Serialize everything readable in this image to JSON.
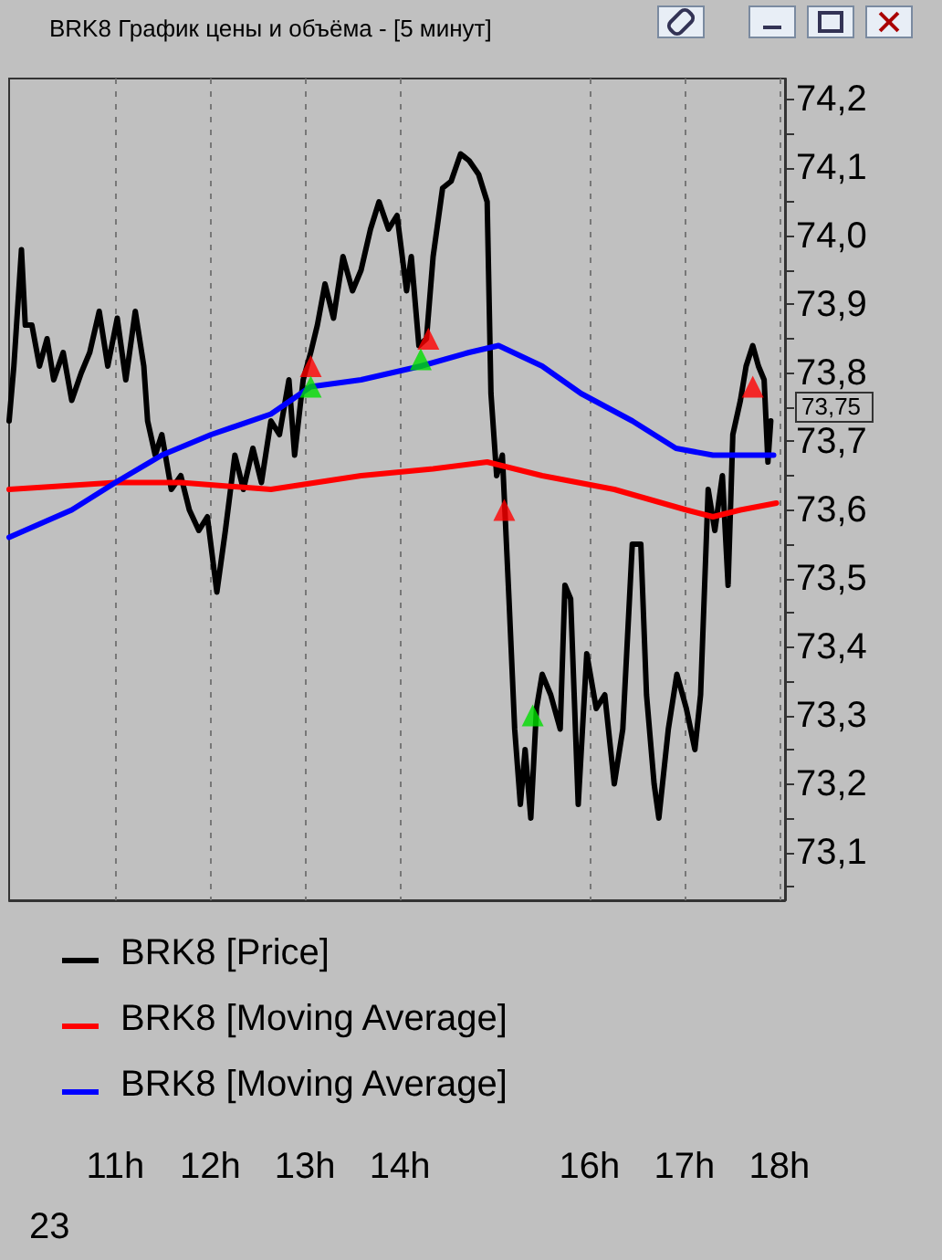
{
  "chart_data": {
    "type": "line",
    "title": "BRK8 График цены и объёма - [5 минут]",
    "xlim": [
      9.88,
      18.06
    ],
    "ylim": [
      73.03,
      74.23
    ],
    "xticks": [
      {
        "value": 11,
        "label": "11h"
      },
      {
        "value": 12,
        "label": "12h"
      },
      {
        "value": 13,
        "label": "13h"
      },
      {
        "value": 14,
        "label": "14h"
      },
      {
        "value": 16,
        "label": "16h"
      },
      {
        "value": 17,
        "label": "17h"
      },
      {
        "value": 18,
        "label": "18h"
      }
    ],
    "yticks": [
      {
        "value": 73.05,
        "label": null
      },
      {
        "value": 73.1,
        "label": "73,1"
      },
      {
        "value": 73.15,
        "label": null
      },
      {
        "value": 73.2,
        "label": "73,2"
      },
      {
        "value": 73.25,
        "label": null
      },
      {
        "value": 73.3,
        "label": "73,3"
      },
      {
        "value": 73.35,
        "label": null
      },
      {
        "value": 73.4,
        "label": "73,4"
      },
      {
        "value": 73.45,
        "label": null
      },
      {
        "value": 73.5,
        "label": "73,5"
      },
      {
        "value": 73.55,
        "label": null
      },
      {
        "value": 73.6,
        "label": "73,6"
      },
      {
        "value": 73.65,
        "label": null
      },
      {
        "value": 73.7,
        "label": "73,7"
      },
      {
        "value": 73.75,
        "label": null
      },
      {
        "value": 73.8,
        "label": "73,8"
      },
      {
        "value": 73.85,
        "label": null
      },
      {
        "value": 73.9,
        "label": "73,9"
      },
      {
        "value": 73.95,
        "label": null
      },
      {
        "value": 74.0,
        "label": "74,0"
      },
      {
        "value": 74.05,
        "label": null
      },
      {
        "value": 74.1,
        "label": "74,1"
      },
      {
        "value": 74.15,
        "label": null
      },
      {
        "value": 74.2,
        "label": "74,2"
      }
    ],
    "grid": "x",
    "legend": "bottom left",
    "marker": "none",
    "line_style": "solid",
    "annotations": [
      "73,75",
      "23"
    ],
    "series": [
      {
        "name": "BRK8 [Price]",
        "color": "#000000",
        "x": [
          9.88,
          9.93,
          10.01,
          10.05,
          10.12,
          10.2,
          10.28,
          10.35,
          10.45,
          10.54,
          10.64,
          10.73,
          10.83,
          10.92,
          11.02,
          11.11,
          11.21,
          11.3,
          11.34,
          11.42,
          11.49,
          11.59,
          11.69,
          11.78,
          11.88,
          11.97,
          12.07,
          12.16,
          12.26,
          12.35,
          12.45,
          12.54,
          12.64,
          12.73,
          12.83,
          12.89,
          12.98,
          13.06,
          13.13,
          13.21,
          13.3,
          13.4,
          13.5,
          13.59,
          13.69,
          13.78,
          13.88,
          13.97,
          14.07,
          14.12,
          14.2,
          14.28,
          14.35,
          14.45,
          14.54,
          14.64,
          14.73,
          14.83,
          14.92,
          14.96,
          15.02,
          15.08,
          15.15,
          15.21,
          15.27,
          15.32,
          15.38,
          15.44,
          15.5,
          15.59,
          15.69,
          15.74,
          15.8,
          15.88,
          15.97,
          16.07,
          16.16,
          16.26,
          16.35,
          16.45,
          16.54,
          16.6,
          16.68,
          16.73,
          16.83,
          16.92,
          17.02,
          17.11,
          17.17,
          17.25,
          17.32,
          17.4,
          17.46,
          17.51,
          17.59,
          17.65,
          17.72,
          17.78,
          17.84,
          17.88,
          17.91
        ],
        "values": [
          73.73,
          73.81,
          73.98,
          73.87,
          73.87,
          73.81,
          73.85,
          73.79,
          73.83,
          73.76,
          73.8,
          73.83,
          73.89,
          73.81,
          73.88,
          73.79,
          73.89,
          73.81,
          73.73,
          73.68,
          73.71,
          73.63,
          73.65,
          73.6,
          73.57,
          73.59,
          73.48,
          73.57,
          73.68,
          73.63,
          73.69,
          73.64,
          73.73,
          73.71,
          73.79,
          73.68,
          73.79,
          73.83,
          73.87,
          73.93,
          73.88,
          73.97,
          73.92,
          73.95,
          74.01,
          74.05,
          74.01,
          74.03,
          73.92,
          73.97,
          73.84,
          73.85,
          73.97,
          74.07,
          74.08,
          74.12,
          74.11,
          74.09,
          74.05,
          73.77,
          73.65,
          73.68,
          73.47,
          73.28,
          73.17,
          73.25,
          73.15,
          73.31,
          73.36,
          73.33,
          73.28,
          73.49,
          73.47,
          73.17,
          73.39,
          73.31,
          73.33,
          73.2,
          73.28,
          73.55,
          73.55,
          73.33,
          73.2,
          73.15,
          73.28,
          73.36,
          73.31,
          73.25,
          73.33,
          73.63,
          73.57,
          73.65,
          73.49,
          73.71,
          73.76,
          73.81,
          73.84,
          73.81,
          73.79,
          73.67,
          73.73
        ]
      },
      {
        "name": "BRK8 [Moving Average]",
        "color": "#ff0000",
        "x": [
          9.88,
          11.0,
          11.69,
          12.64,
          13.59,
          14.35,
          14.92,
          15.5,
          16.26,
          17.02,
          17.3,
          17.59,
          17.97
        ],
        "values": [
          73.63,
          73.64,
          73.64,
          73.63,
          73.65,
          73.66,
          73.67,
          73.65,
          73.63,
          73.6,
          73.59,
          73.6,
          73.61
        ]
      },
      {
        "name": "BRK8 [Moving Average]",
        "color": "#0000ff",
        "x": [
          9.88,
          10.54,
          11.0,
          11.49,
          12.01,
          12.64,
          13.06,
          13.59,
          14.22,
          14.73,
          15.04,
          15.5,
          15.91,
          16.45,
          16.91,
          17.3,
          17.59,
          17.94
        ],
        "values": [
          73.56,
          73.6,
          73.64,
          73.68,
          73.71,
          73.74,
          73.78,
          73.79,
          73.81,
          73.83,
          73.84,
          73.81,
          73.77,
          73.73,
          73.69,
          73.68,
          73.68,
          73.68
        ]
      },
      {
        "type": "scatter",
        "marker": "triangle",
        "color": "#ff0000",
        "x": [
          13.06,
          14.3,
          15.1,
          17.72
        ],
        "values": [
          73.81,
          73.85,
          73.6,
          73.78
        ]
      },
      {
        "type": "scatter",
        "marker": "triangle",
        "color": "#00dd00",
        "x": [
          13.06,
          14.22,
          15.4
        ],
        "values": [
          73.78,
          73.82,
          73.3
        ]
      }
    ]
  }
}
